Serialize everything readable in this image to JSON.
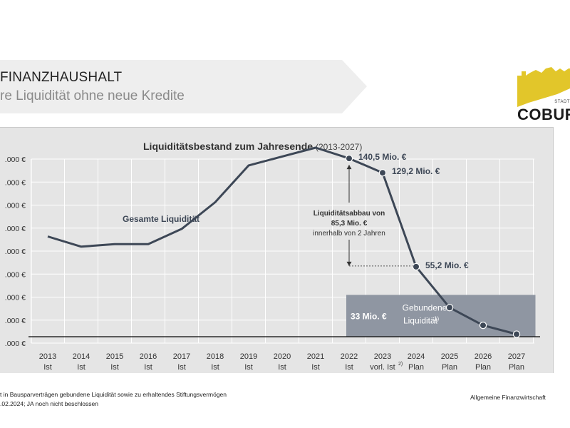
{
  "header": {
    "title": "FINANZHAUSHALT",
    "subtitle": "re Liquidität ohne neue Kredite"
  },
  "logo": {
    "word": "COBURG",
    "small": "STADT"
  },
  "colors": {
    "line": "#3d4756",
    "panel": "#e5e5e5",
    "gebunden_box": "#8f96a2",
    "logo_gold": "#e2c62a"
  },
  "chart_data": {
    "type": "line",
    "title": "Liquiditätsbestand zum Jahresende",
    "subtitle": "(2013-2027)",
    "categories": [
      {
        "year": "2013",
        "status": "Ist"
      },
      {
        "year": "2014",
        "status": "Ist"
      },
      {
        "year": "2015",
        "status": "Ist"
      },
      {
        "year": "2016",
        "status": "Ist"
      },
      {
        "year": "2017",
        "status": "Ist"
      },
      {
        "year": "2018",
        "status": "Ist"
      },
      {
        "year": "2019",
        "status": "Ist"
      },
      {
        "year": "2020",
        "status": "Ist"
      },
      {
        "year": "2021",
        "status": "Ist"
      },
      {
        "year": "2022",
        "status": "Ist"
      },
      {
        "year": "2023",
        "status": "vorl. Ist",
        "sup": "2)"
      },
      {
        "year": "2024",
        "status": "Plan"
      },
      {
        "year": "2025",
        "status": "Plan"
      },
      {
        "year": "2026",
        "status": "Plan"
      },
      {
        "year": "2027",
        "status": "Plan"
      }
    ],
    "series": [
      {
        "name": "Gesamte Liquidität",
        "values": [
          79,
          71,
          73,
          73,
          85,
          106,
          135,
          142,
          149,
          140.5,
          129.2,
          55.2,
          23,
          9,
          2
        ]
      }
    ],
    "yticks": [
      ".000 €",
      ".000 €",
      ".000 €",
      ".000 €",
      ".000 €",
      ".000 €",
      ".000 €",
      ".000 €",
      ".000 €"
    ],
    "ylim": [
      -5,
      140
    ],
    "markers_from_index": 9,
    "data_labels": [
      {
        "index": 9,
        "text": "140,5 Mio. €"
      },
      {
        "index": 10,
        "text": "129,2 Mio. €"
      },
      {
        "index": 11,
        "text": "55,2 Mio. €"
      }
    ],
    "annotation": {
      "lines": [
        "Liquiditätsabbau von",
        "85,3 Mio. €",
        "innerhalb von 2 Jahren"
      ]
    },
    "gebunden": {
      "amount": "33 Mio. €",
      "line1": "Gebundene",
      "line2": "Liquidität",
      "sup": "1)",
      "value": 33
    }
  },
  "footer": {
    "note1": "t in Bausparverträgen gebundene Liquidität sowie zu erhaltendes Stiftungsvermögen",
    "note2": ".02.2024; JA noch nicht beschlossen",
    "department": "Allgemeine Finanzwirtschaft"
  }
}
